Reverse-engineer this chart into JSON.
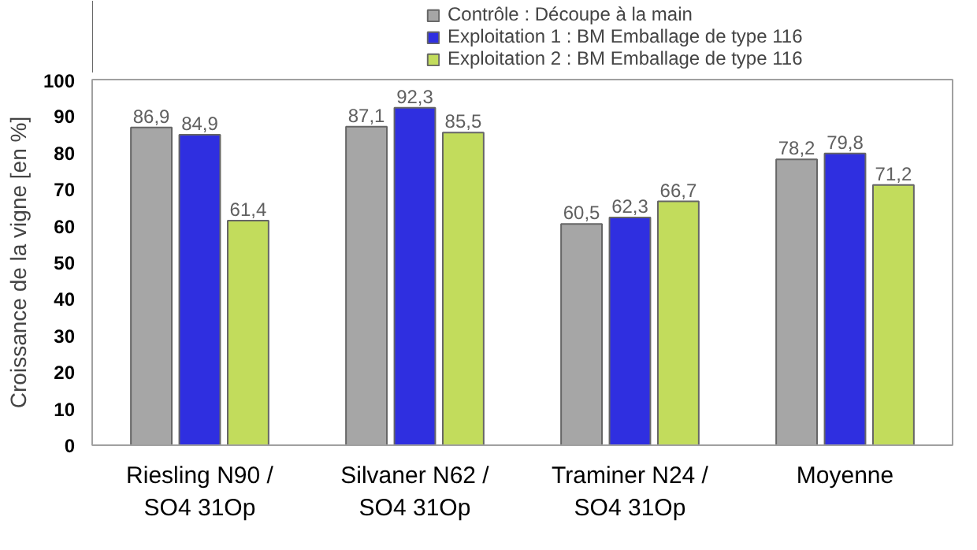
{
  "chart_data": {
    "type": "bar",
    "ylabel": "Croissance de la vigne [en %]",
    "categories": [
      "Riesling N90 /\nSO4 31Op",
      "Silvaner N62 /\nSO4 31Op",
      "Traminer N24 /\nSO4 31Op",
      "Moyenne"
    ],
    "series": [
      {
        "name": "Contrôle : Découpe à la main",
        "color": "#a6a6a6",
        "values": [
          86.9,
          87.1,
          60.5,
          78.2
        ],
        "value_labels": [
          "86,9",
          "87,1",
          "60,5",
          "78,2"
        ]
      },
      {
        "name": "Exploitation 1 : BM Emballage de type 116",
        "color": "#2f2fe0",
        "values": [
          84.9,
          92.3,
          62.3,
          79.8
        ],
        "value_labels": [
          "84,9",
          "92,3",
          "62,3",
          "79,8"
        ]
      },
      {
        "name": "Exploitation 2 : BM Emballage de type 116",
        "color": "#c2dc5c",
        "values": [
          61.4,
          85.5,
          66.7,
          71.2
        ],
        "value_labels": [
          "61,4",
          "85,5",
          "66,7",
          "71,2"
        ]
      }
    ],
    "ylim": [
      0,
      100
    ],
    "yticks": [
      0,
      10,
      20,
      30,
      40,
      50,
      60,
      70,
      80,
      90,
      100
    ],
    "legend": "top",
    "grid": false
  }
}
